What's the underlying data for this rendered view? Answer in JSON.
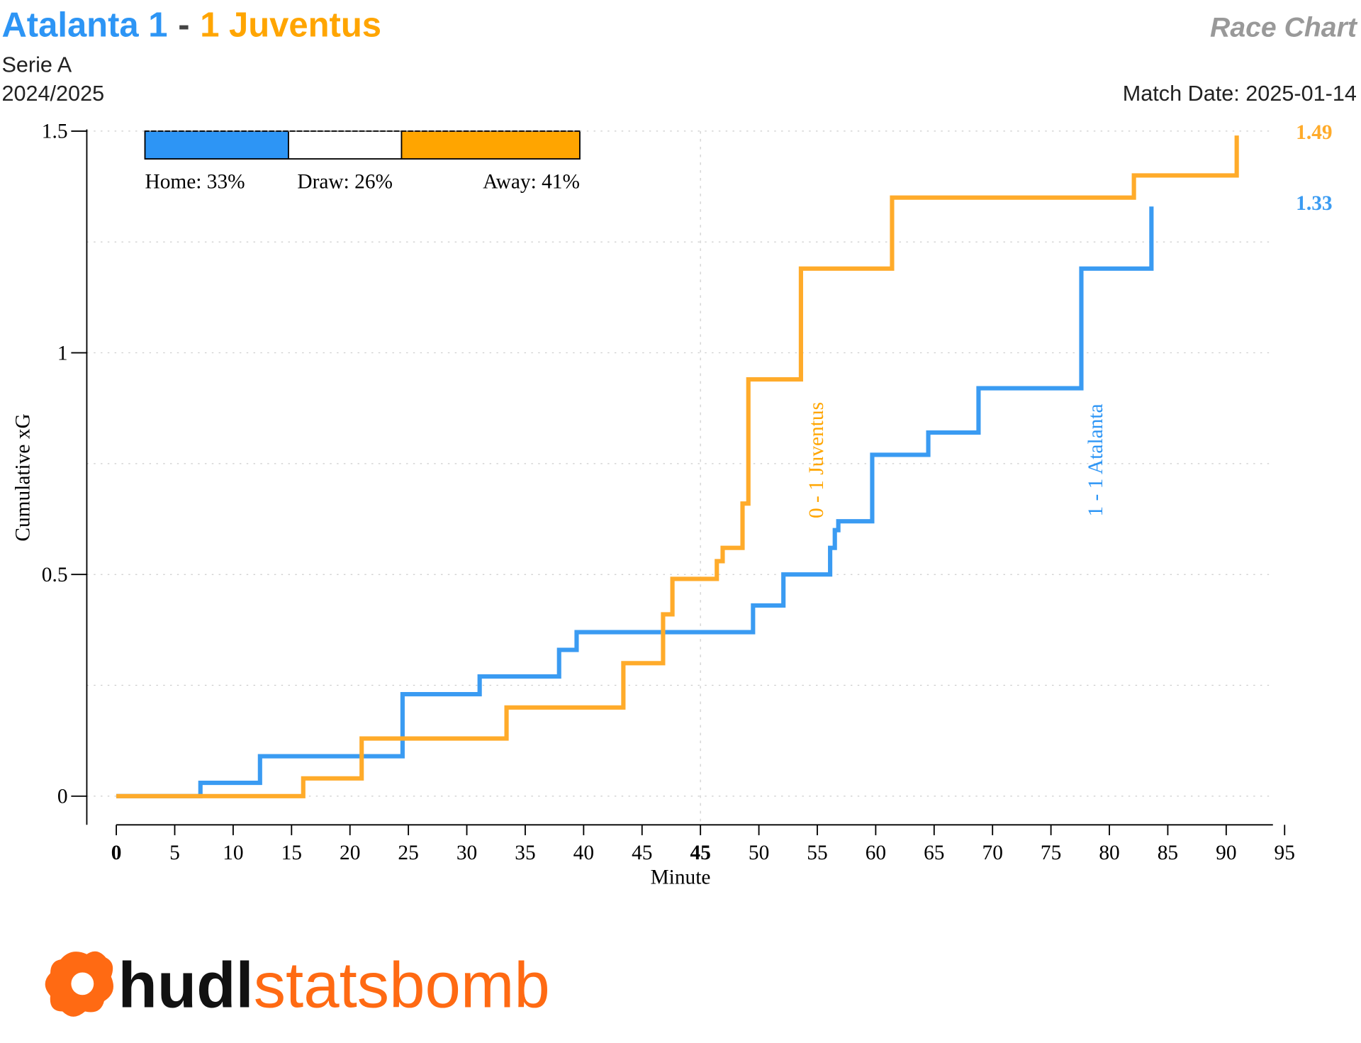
{
  "header": {
    "home_title": "Atalanta 1",
    "separator": "-",
    "away_title": "1 Juventus",
    "home_color": "#2d95f5",
    "away_color": "#ffa500",
    "chart_kind": "Race Chart",
    "competition": "Serie A",
    "season": "2024/2025",
    "match_date": "Match Date: 2025-01-14"
  },
  "probabilities": [
    {
      "name": "Home",
      "value": 33,
      "label": "Home: 33%",
      "color": "#2d95f5"
    },
    {
      "name": "Draw",
      "value": 26,
      "label": "Draw: 26%",
      "color": "#ffffff"
    },
    {
      "name": "Away",
      "value": 41,
      "label": "Away: 41%",
      "color": "#ffa500"
    }
  ],
  "chart_data": {
    "type": "line",
    "step": true,
    "xlabel": "Minute",
    "ylabel": "Cumulative xG",
    "xlim": [
      0,
      99
    ],
    "ylim": [
      0,
      1.5
    ],
    "xticks": [
      {
        "value": 0,
        "label": "0",
        "bold": true
      },
      5,
      10,
      15,
      20,
      25,
      30,
      35,
      40,
      45,
      {
        "value": 50,
        "label": "45",
        "bold": true
      },
      {
        "value": 55,
        "label": "50"
      },
      {
        "value": 60,
        "label": "55"
      },
      {
        "value": 65,
        "label": "60"
      },
      {
        "value": 70,
        "label": "65"
      },
      {
        "value": 75,
        "label": "70"
      },
      {
        "value": 80,
        "label": "75"
      },
      {
        "value": 85,
        "label": "80"
      },
      {
        "value": 90,
        "label": "85"
      },
      {
        "value": 95,
        "label": "90"
      },
      {
        "value": 100,
        "label": "95"
      }
    ],
    "yticks": [
      0,
      0.5,
      1,
      1.5
    ],
    "yminor": [
      0.25,
      0.75,
      1.25
    ],
    "vlines": [
      50
    ],
    "grid": true,
    "series": [
      {
        "name": "Atalanta",
        "color": "#3a9bf2",
        "x": [
          0,
          7.2,
          12.3,
          24.5,
          31.1,
          37.9,
          39.4,
          54.5,
          57.1,
          61.1,
          61.5,
          61.8,
          64.7,
          69.5,
          73.8,
          82.6,
          88.6
        ],
        "values": [
          0,
          0.03,
          0.09,
          0.23,
          0.27,
          0.33,
          0.37,
          0.43,
          0.5,
          0.56,
          0.6,
          0.62,
          0.77,
          0.82,
          0.92,
          1.19,
          1.33
        ]
      },
      {
        "name": "Juventus",
        "color": "#ffab2a",
        "x": [
          0,
          16.0,
          21.0,
          33.4,
          43.4,
          46.8,
          47.6,
          51.4,
          51.9,
          53.6,
          54.1,
          58.6,
          66.4,
          87.1,
          95.9
        ],
        "values": [
          0,
          0.04,
          0.13,
          0.2,
          0.3,
          0.41,
          0.49,
          0.53,
          0.56,
          0.66,
          0.94,
          1.19,
          1.35,
          1.4,
          1.49
        ]
      }
    ],
    "annotations": [
      {
        "text": "0 - 1 Juventus",
        "x": 59.9,
        "color": "#ffa500"
      },
      {
        "text": "1 - 1 Atalanta",
        "x": 83.8,
        "color": "#2d95f5"
      }
    ]
  },
  "logo": {
    "part1": "hudl",
    "part2": "statsbomb"
  }
}
